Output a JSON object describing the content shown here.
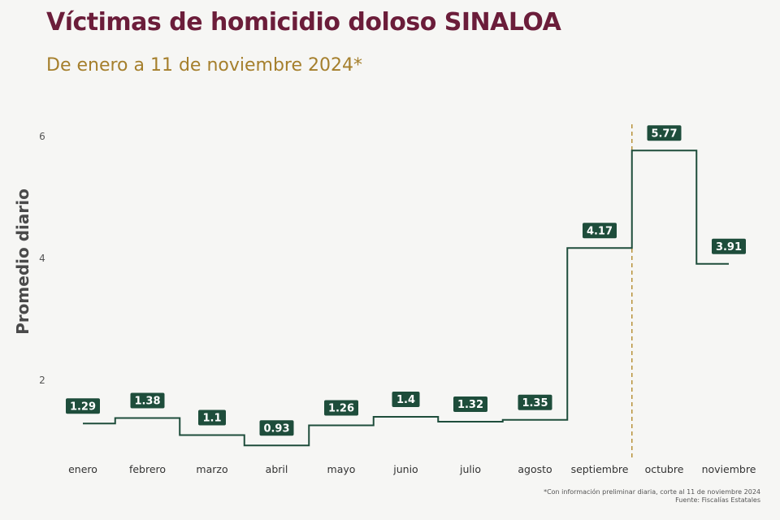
{
  "title": "Víctimas de homicidio doloso SINALOA",
  "subtitle": "De enero a 11 de noviembre 2024*",
  "note": "*Con información preliminar diaria, corte al 11 de noviembre 2024",
  "source": "Fuente: Fiscalías Estatales",
  "colors": {
    "title": "#6b1d3a",
    "subtitle": "#a57f2c",
    "line": "#1e4d3b",
    "marker": "#b8923a"
  },
  "chart_data": {
    "type": "line",
    "step": true,
    "title": "Víctimas de homicidio doloso SINALOA",
    "ylabel": "Promedio diario",
    "xlabel": "",
    "ylim": [
      0,
      6.3
    ],
    "yticks": [
      2,
      4,
      6
    ],
    "grid": false,
    "categories": [
      "enero",
      "febrero",
      "marzo",
      "abril",
      "mayo",
      "junio",
      "julio",
      "agosto",
      "septiembre",
      "octubre",
      "noviembre"
    ],
    "values": [
      1.29,
      1.38,
      1.1,
      0.93,
      1.26,
      1.4,
      1.32,
      1.35,
      4.17,
      5.77,
      3.91
    ],
    "labels": [
      "1.29",
      "1.38",
      "1.1",
      "0.93",
      "1.26",
      "1.4",
      "1.32",
      "1.35",
      "4.17",
      "5.77",
      "3.91"
    ],
    "annotation": "dashed vertical line between septiembre and octubre"
  }
}
